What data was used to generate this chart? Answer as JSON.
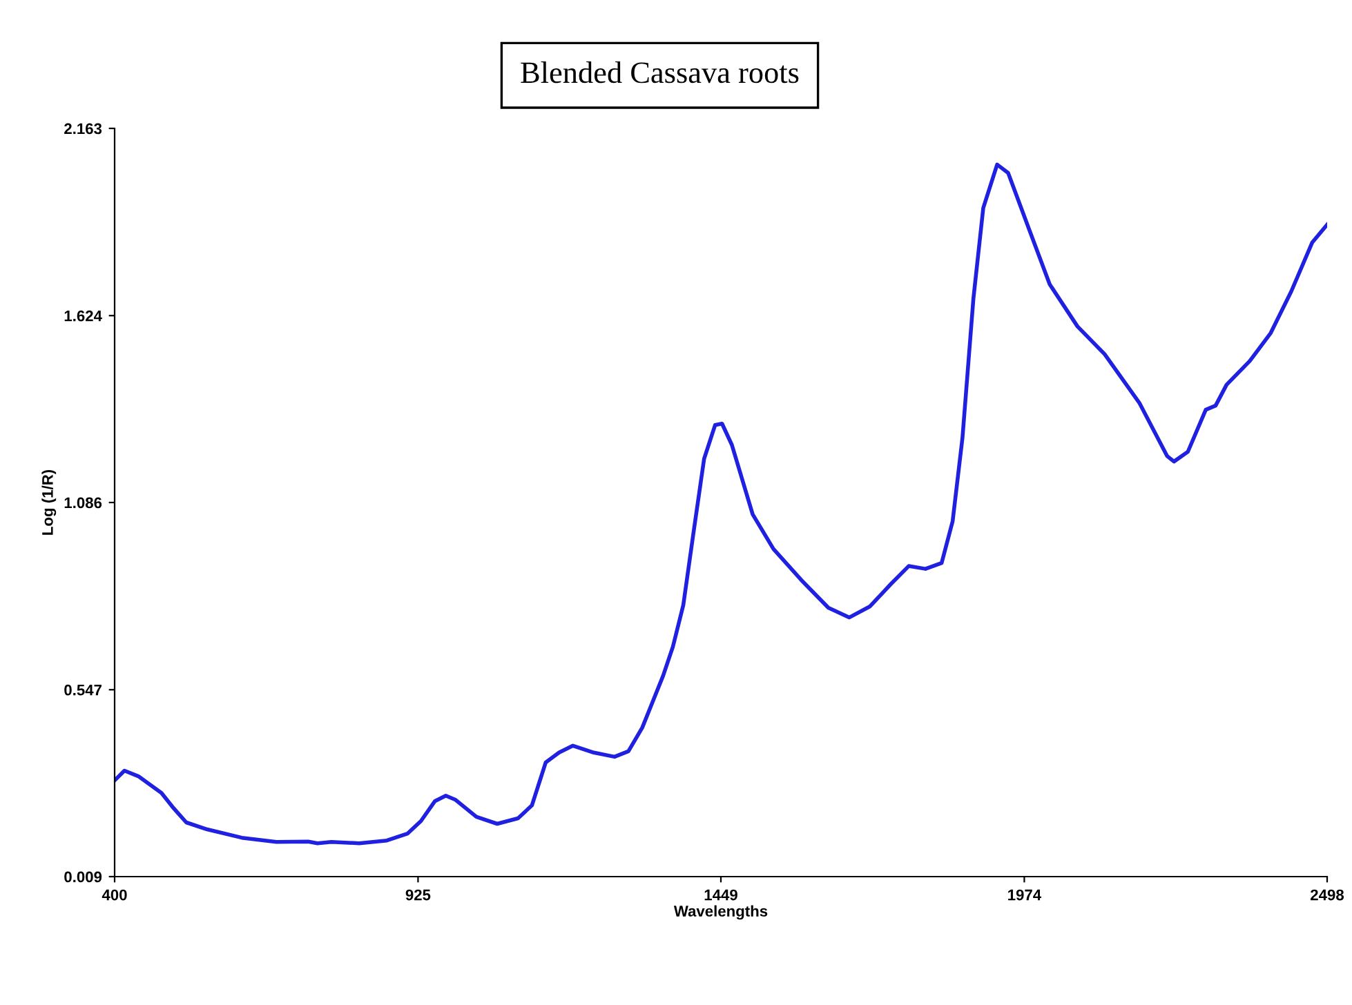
{
  "chart_data": {
    "type": "line",
    "title": "Blended Cassava roots",
    "xlabel": "Wavelengths",
    "ylabel": "Log (1/R)",
    "xlim": [
      400,
      2498
    ],
    "ylim": [
      0.009,
      2.163
    ],
    "xticks": [
      400,
      925,
      1449,
      1974,
      2498
    ],
    "yticks": [
      0.009,
      0.547,
      1.086,
      1.624,
      2.163
    ],
    "grid": false,
    "marker": "none",
    "line_style": "solid",
    "series": [
      {
        "color": "#2020e0",
        "x": [
          400,
          417,
          441,
          481,
          500,
          524,
          560,
          620,
          680,
          735,
          751,
          775,
          823,
          871,
          907,
          930,
          954,
          973,
          990,
          1026,
          1062,
          1098,
          1122,
          1146,
          1169,
          1193,
          1229,
          1265,
          1289,
          1313,
          1349,
          1366,
          1384,
          1401,
          1420,
          1439,
          1451,
          1468,
          1504,
          1540,
          1588,
          1635,
          1671,
          1707,
          1743,
          1774,
          1803,
          1831,
          1850,
          1867,
          1886,
          1903,
          1927,
          1946,
          1982,
          2018,
          2066,
          2113,
          2173,
          2221,
          2233,
          2257,
          2288,
          2305,
          2324,
          2364,
          2400,
          2436,
          2472,
          2498
        ],
        "values": [
          0.286,
          0.314,
          0.298,
          0.25,
          0.21,
          0.165,
          0.145,
          0.121,
          0.109,
          0.11,
          0.105,
          0.109,
          0.105,
          0.113,
          0.133,
          0.169,
          0.226,
          0.242,
          0.23,
          0.181,
          0.161,
          0.177,
          0.214,
          0.338,
          0.366,
          0.386,
          0.366,
          0.354,
          0.37,
          0.438,
          0.587,
          0.671,
          0.791,
          0.992,
          1.212,
          1.309,
          1.313,
          1.252,
          1.052,
          0.952,
          0.863,
          0.783,
          0.755,
          0.787,
          0.851,
          0.903,
          0.895,
          0.912,
          1.032,
          1.272,
          1.674,
          1.934,
          2.059,
          2.035,
          1.874,
          1.714,
          1.593,
          1.513,
          1.373,
          1.22,
          1.204,
          1.232,
          1.353,
          1.365,
          1.425,
          1.493,
          1.573,
          1.694,
          1.834,
          1.886
        ]
      }
    ]
  }
}
